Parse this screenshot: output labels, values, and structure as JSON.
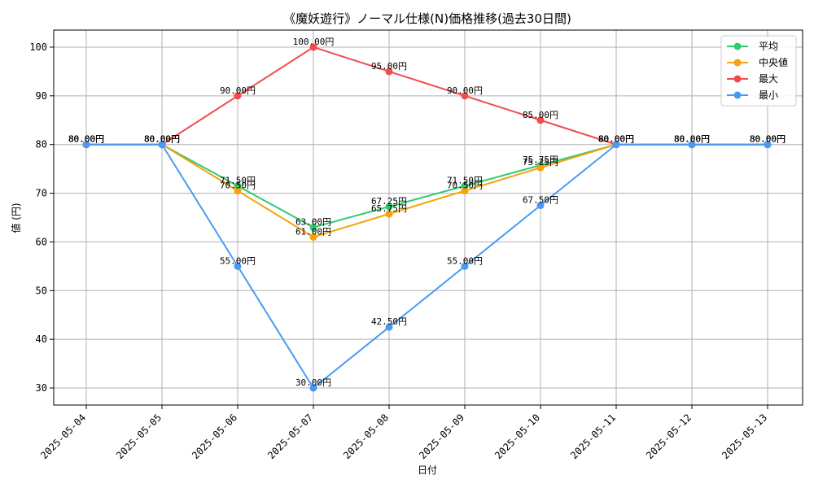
{
  "chart_data": {
    "type": "line",
    "title": "《魔妖遊行》ノーマル仕様(N)価格推移(過去30日間)",
    "xlabel": "日付",
    "ylabel": "値 (円)",
    "categories": [
      "2025-05-04",
      "2025-05-05",
      "2025-05-06",
      "2025-05-07",
      "2025-05-08",
      "2025-05-09",
      "2025-05-10",
      "2025-05-11",
      "2025-05-12",
      "2025-05-13"
    ],
    "yticks": [
      30,
      40,
      50,
      60,
      70,
      80,
      90,
      100
    ],
    "ylim": [
      26.5,
      103.5
    ],
    "grid": true,
    "legend_position": "top-right",
    "value_suffix": "円",
    "series": [
      {
        "name": "平均",
        "color": "#2ecc71",
        "values": [
          80,
          80,
          71.5,
          63,
          67.25,
          71.5,
          75.75,
          80,
          80,
          80
        ],
        "labels": [
          "80.00円",
          "80.00円",
          "71.50円",
          "63.00円",
          "67.25円",
          "71.50円",
          "75.75円",
          "80.00円",
          "80.00円",
          "80.00円"
        ]
      },
      {
        "name": "中央値",
        "color": "#f5a20c",
        "values": [
          80,
          80,
          70.5,
          61,
          65.75,
          70.5,
          75.25,
          80,
          80,
          80
        ],
        "labels": [
          "80.00円",
          "80.00円",
          "70.50円",
          "61.00円",
          "65.75円",
          "70.50円",
          "75.25円",
          "80.00円",
          "80.00円",
          "80.00円"
        ]
      },
      {
        "name": "最大",
        "color": "#f24b4b",
        "values": [
          80,
          80,
          90,
          100,
          95,
          90,
          85,
          80,
          80,
          80
        ],
        "labels": [
          "80.00円",
          "80.00円",
          "90.00円",
          "100.00円",
          "95.00円",
          "90.00円",
          "85.00円",
          "80.00円",
          "80.00円",
          "80.00円"
        ]
      },
      {
        "name": "最小",
        "color": "#4a9af4",
        "values": [
          80,
          80,
          55,
          30,
          42.5,
          55,
          67.5,
          80,
          80,
          80
        ],
        "labels": [
          "80.00円",
          "80.00円",
          "55.00円",
          "30.00円",
          "42.50円",
          "55.00円",
          "67.50円",
          "80.00円",
          "80.00円",
          "80.00円"
        ]
      }
    ]
  }
}
